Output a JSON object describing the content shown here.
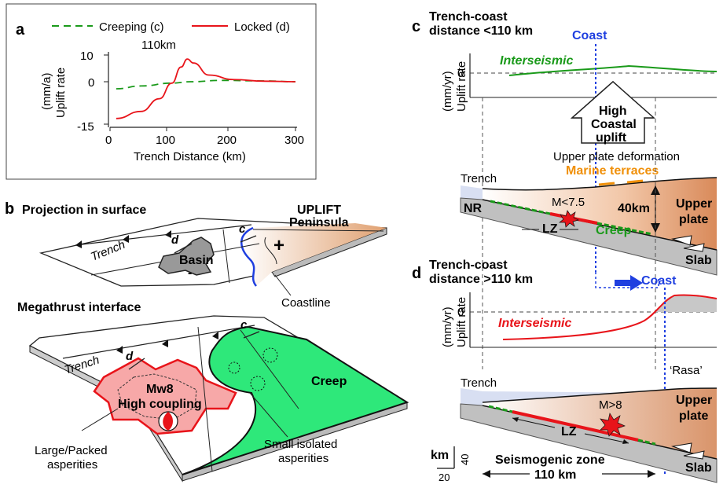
{
  "panel_a": {
    "letter": "a",
    "legend": {
      "creep": "Creeping (c)",
      "locked": "Locked (d)"
    },
    "peak_label": "110km",
    "y_label_1": "(mm/a)",
    "y_label_2": "Uplift rate",
    "x_label": "Trench Distance (km)",
    "y_ticks": [
      "10",
      "0",
      "-15"
    ],
    "x_ticks": [
      "0",
      "100",
      "200",
      "300"
    ]
  },
  "chart_data": {
    "type": "line",
    "title": "",
    "xlabel": "Trench Distance (km)",
    "ylabel": "Uplift rate (mm/a)",
    "xlim": [
      0,
      300
    ],
    "ylim": [
      -15,
      10
    ],
    "series": [
      {
        "name": "Creeping (c)",
        "color": "#1a9a1a",
        "style": "dashed",
        "x": [
          10,
          50,
          100,
          130,
          180,
          250,
          300
        ],
        "y": [
          -2.5,
          -1.5,
          -0.5,
          0,
          0.5,
          0.3,
          0
        ]
      },
      {
        "name": "Locked (d)",
        "color": "#e8141a",
        "style": "solid",
        "x": [
          10,
          50,
          80,
          100,
          115,
          125,
          135,
          160,
          200,
          250,
          300
        ],
        "y": [
          -13,
          -10.5,
          -6,
          -0.5,
          5.5,
          8.5,
          7,
          2.5,
          0.8,
          0.2,
          0
        ]
      }
    ]
  },
  "panel_b": {
    "letter": "b",
    "proj_title": "Projection in surface",
    "uplift_1": "UPLIFT",
    "uplift_2": "Peninsula",
    "trench": "Trench",
    "d": "d",
    "c": "c",
    "basin": "Basin",
    "minus": "-",
    "plus": "+",
    "coastline": "Coastline",
    "mega_title": "Megathrust interface",
    "trench2": "Trench",
    "d2": "d",
    "c2": "c",
    "mw8": "Mw8",
    "high_coupling": "High coupling",
    "creep": "Creep",
    "large_1": "Large/Packed",
    "large_2": "asperities",
    "small_1": "Small isolated",
    "small_2": "asperities"
  },
  "panel_c": {
    "letter": "c",
    "title_1": "Trench-coast",
    "title_2": "distance <110 km",
    "coast": "Coast",
    "y_label_1": "(mm/yr)",
    "y_label_2": "Uplift rate",
    "zero": "0",
    "interseismic": "Interseismic",
    "arrow_1": "High",
    "arrow_2": "Coastal",
    "arrow_3": "uplift",
    "upd": "Upper plate deformation",
    "marine": "Marine terraces",
    "trench": "Trench",
    "nr": "NR",
    "m75": "M<7.5",
    "km40": "40km",
    "upper_1": "Upper",
    "upper_2": "plate",
    "lz": "LZ",
    "creep": "Creep",
    "slab": "Slab"
  },
  "panel_d": {
    "letter": "d",
    "title_1": "Trench-coast",
    "title_2": "distance >110 km",
    "coast": "Coast",
    "y_label_1": "(mm/yr)",
    "y_label_2": "Uplift rate",
    "zero": "0",
    "interseismic": "Interseismic",
    "rasa": "‘Rasa’",
    "trench": "Trench",
    "m8": "M>8",
    "upper_1": "Upper",
    "upper_2": "plate",
    "lz": "LZ",
    "slab": "Slab",
    "km": "km",
    "s40": "40",
    "s20": "20",
    "seis": "Seismogenic zone",
    "km110": "110 km"
  },
  "colors": {
    "creep_green": "#1a9a1a",
    "locked_red": "#e8141a",
    "coast_blue": "#1f3fe0",
    "terrace_orange": "#f0900a",
    "creep_fill": "#2ee87a",
    "coupling_fill": "#f7a8a8"
  }
}
